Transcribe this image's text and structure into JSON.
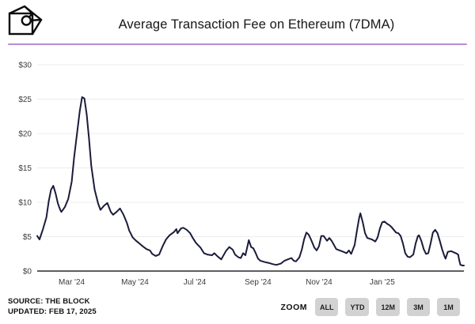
{
  "header": {
    "title": "Average Transaction Fee on Ethereum (7DMA)",
    "logo_name": "the-block-logo"
  },
  "footer": {
    "source": "SOURCE: THE BLOCK",
    "updated": "UPDATED: FEB 17, 2025"
  },
  "zoom_controls": {
    "label": "ZOOM",
    "buttons": [
      "ALL",
      "YTD",
      "12M",
      "3M",
      "1M"
    ]
  },
  "colors": {
    "accent_divider": "#b88bd8",
    "line": "#1b1c3a",
    "grid": "#ececec",
    "axis": "#2a2a2e",
    "tick_text": "#3c3c3c",
    "button_bg": "#d2d2d2"
  },
  "chart_data": {
    "type": "line",
    "title": "Average Transaction Fee on Ethereum (7DMA)",
    "xlabel": "",
    "ylabel": "",
    "ylim": [
      0,
      30
    ],
    "grid": true,
    "legend": "none",
    "y_ticks": [
      {
        "label": "$0",
        "v": 0
      },
      {
        "label": "$5",
        "v": 5
      },
      {
        "label": "$10",
        "v": 10
      },
      {
        "label": "$15",
        "v": 15
      },
      {
        "label": "$20",
        "v": 20
      },
      {
        "label": "$25",
        "v": 25
      },
      {
        "label": "$30",
        "v": 30
      }
    ],
    "x_ticks": [
      {
        "label": "Mar '24",
        "d": 30
      },
      {
        "label": "May '24",
        "d": 85
      },
      {
        "label": "Jul '24",
        "d": 137
      },
      {
        "label": "Sep '24",
        "d": 192
      },
      {
        "label": "Nov '24",
        "d": 245
      },
      {
        "label": "Jan '25",
        "d": 300
      }
    ],
    "x_unit": "days from chart start (chart spans ~Feb 2024 to Feb 17, 2025)",
    "points": [
      [
        0,
        5.1
      ],
      [
        2,
        4.6
      ],
      [
        5,
        6.1
      ],
      [
        8,
        7.8
      ],
      [
        10,
        10.1
      ],
      [
        12,
        11.8
      ],
      [
        14,
        12.4
      ],
      [
        16,
        11.3
      ],
      [
        18,
        9.8
      ],
      [
        20,
        8.9
      ],
      [
        21,
        8.6
      ],
      [
        24,
        9.3
      ],
      [
        27,
        10.5
      ],
      [
        30,
        13.0
      ],
      [
        32,
        16.4
      ],
      [
        35,
        20.5
      ],
      [
        37,
        23.3
      ],
      [
        39,
        25.3
      ],
      [
        41,
        25.1
      ],
      [
        43,
        22.8
      ],
      [
        45,
        19.3
      ],
      [
        47,
        15.3
      ],
      [
        50,
        11.8
      ],
      [
        53,
        9.8
      ],
      [
        55,
        8.9
      ],
      [
        58,
        9.5
      ],
      [
        61,
        9.9
      ],
      [
        64,
        8.6
      ],
      [
        66,
        8.2
      ],
      [
        69,
        8.6
      ],
      [
        72,
        9.1
      ],
      [
        75,
        8.2
      ],
      [
        78,
        7.0
      ],
      [
        80,
        5.9
      ],
      [
        83,
        4.9
      ],
      [
        86,
        4.4
      ],
      [
        89,
        4.0
      ],
      [
        91,
        3.7
      ],
      [
        95,
        3.2
      ],
      [
        98,
        3.0
      ],
      [
        100,
        2.5
      ],
      [
        103,
        2.2
      ],
      [
        106,
        2.4
      ],
      [
        109,
        3.6
      ],
      [
        112,
        4.6
      ],
      [
        115,
        5.2
      ],
      [
        119,
        5.7
      ],
      [
        121,
        6.1
      ],
      [
        122,
        5.5
      ],
      [
        125,
        6.2
      ],
      [
        127,
        6.3
      ],
      [
        130,
        6.0
      ],
      [
        133,
        5.5
      ],
      [
        135,
        4.9
      ],
      [
        138,
        4.1
      ],
      [
        142,
        3.4
      ],
      [
        145,
        2.6
      ],
      [
        148,
        2.4
      ],
      [
        152,
        2.3
      ],
      [
        154,
        2.6
      ],
      [
        157,
        2.1
      ],
      [
        160,
        1.7
      ],
      [
        164,
        2.9
      ],
      [
        167,
        3.5
      ],
      [
        170,
        3.1
      ],
      [
        172,
        2.4
      ],
      [
        175,
        2.0
      ],
      [
        177,
        1.9
      ],
      [
        179,
        2.6
      ],
      [
        181,
        2.3
      ],
      [
        184,
        4.5
      ],
      [
        186,
        3.5
      ],
      [
        188,
        3.3
      ],
      [
        190,
        2.6
      ],
      [
        192,
        1.8
      ],
      [
        194,
        1.5
      ],
      [
        198,
        1.3
      ],
      [
        201,
        1.2
      ],
      [
        205,
        1.0
      ],
      [
        208,
        0.9
      ],
      [
        212,
        1.1
      ],
      [
        215,
        1.5
      ],
      [
        218,
        1.7
      ],
      [
        221,
        1.9
      ],
      [
        223,
        1.5
      ],
      [
        225,
        1.4
      ],
      [
        228,
        2.0
      ],
      [
        230,
        3.1
      ],
      [
        232,
        4.6
      ],
      [
        234,
        5.6
      ],
      [
        236,
        5.3
      ],
      [
        238,
        4.6
      ],
      [
        241,
        3.4
      ],
      [
        243,
        3.0
      ],
      [
        245,
        3.6
      ],
      [
        247,
        5.1
      ],
      [
        249,
        5.1
      ],
      [
        252,
        4.4
      ],
      [
        254,
        4.8
      ],
      [
        256,
        4.4
      ],
      [
        258,
        3.8
      ],
      [
        260,
        3.2
      ],
      [
        263,
        3.0
      ],
      [
        266,
        2.8
      ],
      [
        269,
        2.6
      ],
      [
        271,
        3.0
      ],
      [
        273,
        2.5
      ],
      [
        276,
        3.8
      ],
      [
        278,
        5.9
      ],
      [
        280,
        7.8
      ],
      [
        281,
        8.4
      ],
      [
        283,
        7.1
      ],
      [
        285,
        5.5
      ],
      [
        287,
        4.8
      ],
      [
        289,
        4.7
      ],
      [
        291,
        4.6
      ],
      [
        294,
        4.3
      ],
      [
        296,
        4.9
      ],
      [
        298,
        6.2
      ],
      [
        300,
        7.1
      ],
      [
        302,
        7.2
      ],
      [
        304,
        6.9
      ],
      [
        306,
        6.7
      ],
      [
        308,
        6.4
      ],
      [
        310,
        6.0
      ],
      [
        312,
        5.6
      ],
      [
        314,
        5.5
      ],
      [
        316,
        5.1
      ],
      [
        318,
        4.0
      ],
      [
        320,
        2.6
      ],
      [
        322,
        2.1
      ],
      [
        324,
        2.0
      ],
      [
        327,
        2.4
      ],
      [
        329,
        4.0
      ],
      [
        331,
        5.1
      ],
      [
        332,
        5.2
      ],
      [
        334,
        4.4
      ],
      [
        336,
        3.2
      ],
      [
        338,
        2.5
      ],
      [
        340,
        2.6
      ],
      [
        342,
        4.0
      ],
      [
        344,
        5.6
      ],
      [
        346,
        6.0
      ],
      [
        348,
        5.5
      ],
      [
        350,
        4.4
      ],
      [
        352,
        3.2
      ],
      [
        354,
        2.2
      ],
      [
        355,
        1.8
      ],
      [
        357,
        2.8
      ],
      [
        360,
        2.9
      ],
      [
        361,
        2.8
      ],
      [
        364,
        2.6
      ],
      [
        366,
        2.4
      ],
      [
        367,
        1.5
      ],
      [
        368,
        0.9
      ],
      [
        370,
        0.8
      ],
      [
        371,
        0.8
      ]
    ]
  }
}
